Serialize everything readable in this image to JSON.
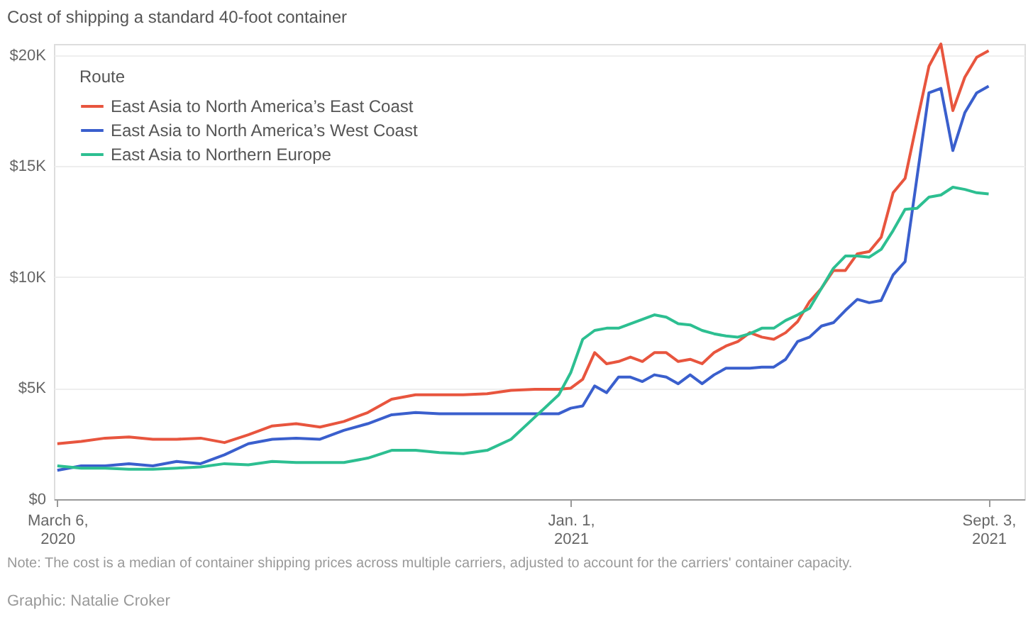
{
  "chart_data": {
    "type": "line",
    "title": "Cost of shipping a standard 40-foot container",
    "legend_title": "Route",
    "legend": "top left",
    "grid": "y",
    "x": [
      "2020-03-06",
      "2020-03-20",
      "2020-04-03",
      "2020-04-17",
      "2020-05-01",
      "2020-05-15",
      "2020-05-29",
      "2020-06-12",
      "2020-06-26",
      "2020-07-10",
      "2020-07-24",
      "2020-08-07",
      "2020-08-21",
      "2020-09-04",
      "2020-09-18",
      "2020-10-02",
      "2020-10-16",
      "2020-10-30",
      "2020-11-13",
      "2020-11-27",
      "2020-12-11",
      "2020-12-25",
      "2021-01-01",
      "2021-01-08",
      "2021-01-15",
      "2021-01-22",
      "2021-01-29",
      "2021-02-05",
      "2021-02-12",
      "2021-02-19",
      "2021-02-26",
      "2021-03-05",
      "2021-03-12",
      "2021-03-19",
      "2021-03-26",
      "2021-04-02",
      "2021-04-09",
      "2021-04-16",
      "2021-04-23",
      "2021-04-30",
      "2021-05-07",
      "2021-05-14",
      "2021-05-21",
      "2021-05-28",
      "2021-06-04",
      "2021-06-11",
      "2021-06-18",
      "2021-06-25",
      "2021-07-02",
      "2021-07-09",
      "2021-07-16",
      "2021-07-23",
      "2021-07-30",
      "2021-08-06",
      "2021-08-13",
      "2021-08-20",
      "2021-08-27",
      "2021-09-03"
    ],
    "series": [
      {
        "name": "East Asia to North America’s East Coast",
        "color": "#e8553e",
        "values": [
          2500,
          2600,
          2750,
          2800,
          2700,
          2700,
          2750,
          2550,
          2900,
          3300,
          3400,
          3250,
          3500,
          3900,
          4500,
          4700,
          4700,
          4700,
          4750,
          4900,
          4950,
          4950,
          5000,
          5400,
          6600,
          6100,
          6200,
          6400,
          6200,
          6600,
          6600,
          6200,
          6300,
          6100,
          6600,
          6900,
          7100,
          7500,
          7300,
          7200,
          7500,
          8000,
          8900,
          9500,
          10300,
          10300,
          11050,
          11150,
          11800,
          13800,
          14450,
          17000,
          19500,
          20500,
          17500,
          19000,
          19900,
          20200
        ]
      },
      {
        "name": "East Asia to North America’s West Coast",
        "color": "#3a5fcd",
        "values": [
          1300,
          1500,
          1500,
          1600,
          1500,
          1700,
          1600,
          2000,
          2500,
          2700,
          2750,
          2700,
          3100,
          3400,
          3800,
          3900,
          3850,
          3850,
          3850,
          3850,
          3850,
          3850,
          4100,
          4200,
          5100,
          4800,
          5500,
          5500,
          5300,
          5600,
          5500,
          5200,
          5600,
          5200,
          5600,
          5900,
          5900,
          5900,
          5950,
          5950,
          6300,
          7100,
          7300,
          7800,
          7950,
          8500,
          9000,
          8850,
          8950,
          10100,
          10700,
          14500,
          18300,
          18500,
          15700,
          17400,
          18300,
          18600
        ]
      },
      {
        "name": "East Asia to Northern Europe",
        "color": "#2dbf91",
        "values": [
          1500,
          1400,
          1400,
          1350,
          1350,
          1400,
          1450,
          1600,
          1550,
          1700,
          1650,
          1650,
          1650,
          1850,
          2200,
          2200,
          2100,
          2050,
          2200,
          2700,
          3700,
          4700,
          5700,
          7200,
          7600,
          7700,
          7700,
          7900,
          8100,
          8300,
          8200,
          7900,
          7850,
          7600,
          7450,
          7350,
          7300,
          7450,
          7700,
          7700,
          8050,
          8300,
          8600,
          9500,
          10400,
          10950,
          10950,
          10900,
          11250,
          12100,
          13050,
          13100,
          13600,
          13700,
          14050,
          13950,
          13800,
          13750
        ]
      }
    ],
    "xlim": [
      "2020-03-04",
      "2021-09-24"
    ],
    "xticks": [
      {
        "value": "2020-03-06",
        "label": "March 6, 2020"
      },
      {
        "value": "2021-01-01",
        "label": "Jan. 1, 2021"
      },
      {
        "value": "2021-09-03",
        "label": "Sept. 3, 2021"
      }
    ],
    "ylim": [
      0,
      20500
    ],
    "yticks": [
      {
        "value": 0,
        "label": "$0"
      },
      {
        "value": 5000,
        "label": "$5K"
      },
      {
        "value": 10000,
        "label": "$10K"
      },
      {
        "value": 15000,
        "label": "$15K"
      },
      {
        "value": 20000,
        "label": "$20K"
      }
    ],
    "annotations": [
      "Note: The cost is a median of container shipping prices across multiple carriers, adjusted to account for the carriers' container capacity.",
      "Graphic: Natalie Croker"
    ]
  }
}
